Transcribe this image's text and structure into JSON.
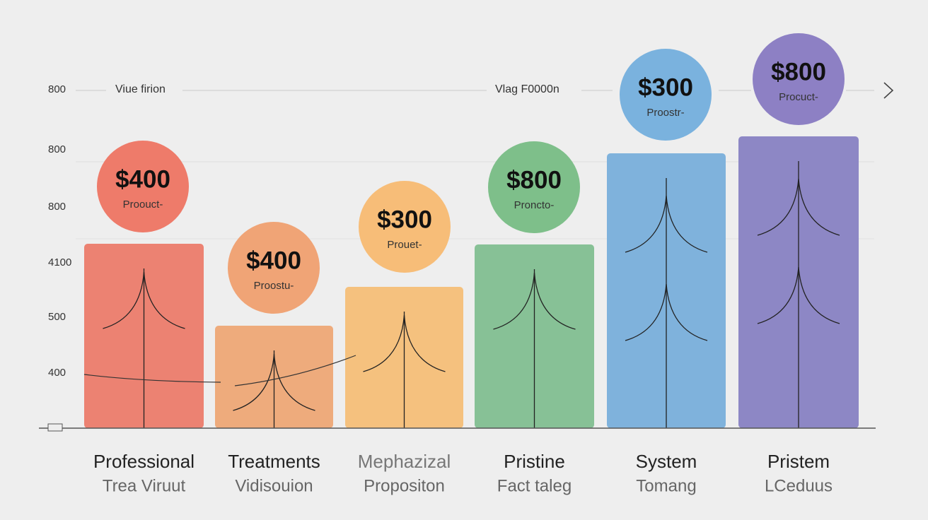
{
  "axis_labels": [
    "800",
    "800",
    "800",
    "4100",
    "500",
    "400"
  ],
  "header_labels": [
    "Viue firion",
    "Vlag F0000n"
  ],
  "items": [
    {
      "price": "$400",
      "caption": "Proouct-",
      "name": "Professional",
      "sub": "Trea Viruut"
    },
    {
      "price": "$400",
      "caption": "Proostu-",
      "name": "Treatments",
      "sub": "Vidisouion"
    },
    {
      "price": "$300",
      "caption": "Prouet-",
      "name": "Mephazizal",
      "sub": "Propositon"
    },
    {
      "price": "$800",
      "caption": "Proncto-",
      "name": "Pristine",
      "sub": "Fact taleg"
    },
    {
      "price": "$300",
      "caption": "Proostr-",
      "name": "System",
      "sub": "Tomang"
    },
    {
      "price": "$800",
      "caption": "Procuct-",
      "name": "Pristem",
      "sub": "LCeduus"
    }
  ]
}
